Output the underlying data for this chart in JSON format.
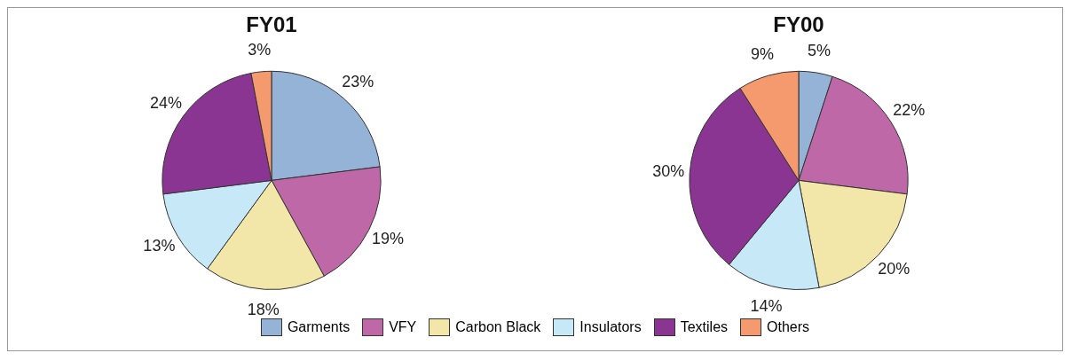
{
  "chart_data": [
    {
      "type": "pie",
      "title": "FY01",
      "categories": [
        "Garments",
        "VFY",
        "Carbon Black",
        "Insulators",
        "Textiles",
        "Others"
      ],
      "values": [
        23,
        19,
        18,
        13,
        24,
        3
      ],
      "value_labels": [
        "23%",
        "19%",
        "18%",
        "13%",
        "24%",
        "3%"
      ],
      "colors": [
        "#95b3d7",
        "#bf68a8",
        "#f2e7a9",
        "#c7e8f7",
        "#8b3592",
        "#f59a6e"
      ],
      "legend": "bottom"
    },
    {
      "type": "pie",
      "title": "FY00",
      "categories": [
        null,
        null,
        null,
        null,
        null,
        null
      ],
      "values": [
        5,
        22,
        20,
        14,
        30,
        9
      ],
      "value_labels": [
        "5%",
        "22%",
        "20%",
        "14%",
        "30%",
        "9%"
      ],
      "colors": [
        "#95b3d7",
        "#bf68a8",
        "#f2e7a9",
        "#c7e8f7",
        "#8b3592",
        "#f59a6e"
      ]
    }
  ]
}
